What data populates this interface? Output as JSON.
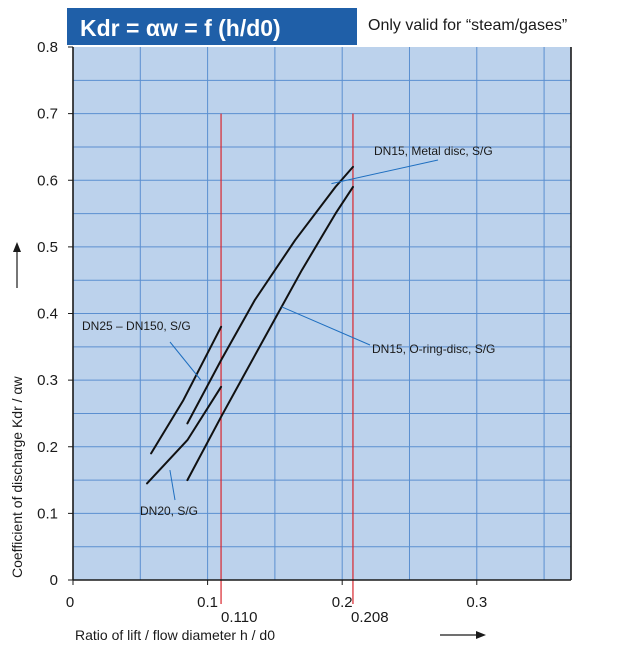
{
  "chart_data": {
    "type": "line",
    "title": "Kdr = αw = f (h/d0)",
    "subtitle": "Only valid for “steam/gases”",
    "xlabel": "Ratio of lift / flow diameter h / d0",
    "ylabel": "Coefficient of discharge Kdr / αw",
    "xlim": [
      0,
      0.37
    ],
    "ylim": [
      0,
      0.8
    ],
    "grid": true,
    "x_ticks": [
      "0",
      "0.1",
      "0.2",
      "0.3"
    ],
    "x_tick_values": [
      0,
      0.1,
      0.2,
      0.3
    ],
    "y_ticks": [
      "0",
      "0.1",
      "0.2",
      "0.3",
      "0.4",
      "0.5",
      "0.6",
      "0.7",
      "0.8"
    ],
    "y_tick_values": [
      0,
      0.1,
      0.2,
      0.3,
      0.4,
      0.5,
      0.6,
      0.7,
      0.8
    ],
    "reference_lines": [
      {
        "x": 0.11,
        "label": "0.110"
      },
      {
        "x": 0.208,
        "label": "0.208"
      }
    ],
    "series": [
      {
        "name": "DN25 – DN150, S/G",
        "points": [
          [
            0.058,
            0.19
          ],
          [
            0.082,
            0.27
          ],
          [
            0.11,
            0.38
          ]
        ]
      },
      {
        "name": "DN20, S/G",
        "points": [
          [
            0.055,
            0.145
          ],
          [
            0.085,
            0.21
          ],
          [
            0.11,
            0.29
          ]
        ]
      },
      {
        "name": "DN15, Metal disc, S/G",
        "points": [
          [
            0.085,
            0.235
          ],
          [
            0.11,
            0.33
          ],
          [
            0.135,
            0.42
          ],
          [
            0.165,
            0.51
          ],
          [
            0.195,
            0.59
          ],
          [
            0.208,
            0.62
          ]
        ]
      },
      {
        "name": "DN15, O-ring-disc, S/G",
        "points": [
          [
            0.085,
            0.15
          ],
          [
            0.11,
            0.245
          ],
          [
            0.14,
            0.355
          ],
          [
            0.17,
            0.465
          ],
          [
            0.195,
            0.55
          ],
          [
            0.208,
            0.59
          ]
        ]
      }
    ],
    "annotations": [
      {
        "text": "DN15, Metal disc, S/G",
        "target": [
          0.192,
          0.595
        ]
      },
      {
        "text": "DN25 – DN150, S/G",
        "target": [
          0.095,
          0.3
        ]
      },
      {
        "text": "DN15, O-ring-disc, S/G",
        "target": [
          0.155,
          0.41
        ]
      },
      {
        "text": "DN20, S/G",
        "target": [
          0.072,
          0.165
        ]
      }
    ],
    "colors": {
      "header": "#1f5fa8",
      "plot_bg": "#bcd2ec",
      "grid": "#5b8fd0",
      "reference": "#d8262e",
      "curve": "#111111",
      "leader": "#1f6fc0"
    }
  }
}
